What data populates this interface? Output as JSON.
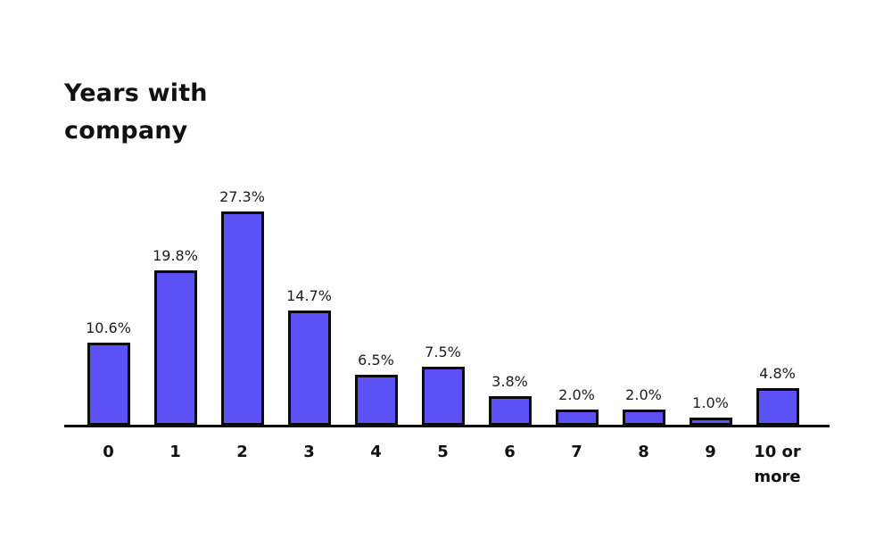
{
  "chart_data": {
    "type": "bar",
    "title": "Years with\ncompany",
    "categories": [
      "0",
      "1",
      "2",
      "3",
      "4",
      "5",
      "6",
      "7",
      "8",
      "9",
      "10 or more"
    ],
    "values": [
      10.6,
      19.8,
      27.3,
      14.7,
      6.5,
      7.5,
      3.8,
      2.0,
      2.0,
      1.0,
      4.8
    ],
    "data_labels": [
      "10.6%",
      "19.8%",
      "27.3%",
      "14.7%",
      "6.5%",
      "7.5%",
      "3.8%",
      "2.0%",
      "2.0%",
      "1.0%",
      "4.8%"
    ],
    "xlabel": "",
    "ylabel": "",
    "ylim": [
      0,
      27.3
    ],
    "grid": false,
    "legend": false,
    "bar_fill_color": "#5b51f5",
    "bar_border_color": "#0b0b0b",
    "axis_color": "#0b0b0b",
    "background_color": "#ffffff"
  }
}
